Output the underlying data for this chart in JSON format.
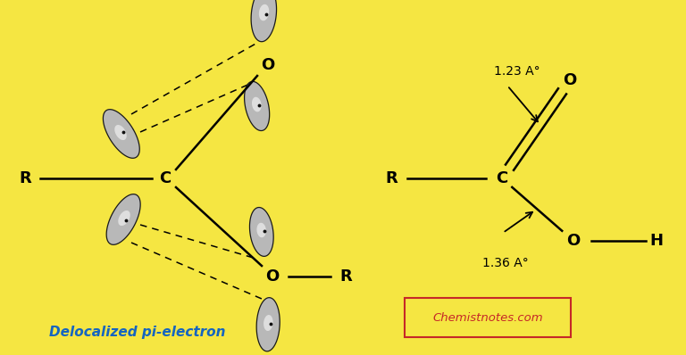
{
  "bg_color": "#F5E642",
  "left_label": "Delocalized pi-electron",
  "left_label_color": "#1565C0",
  "chemistnotes_text": "Chemistnotes.com",
  "chemistnotes_color": "#C62828",
  "chemistnotes_box_color": "#C62828",
  "annotation_123": "1.23 A°",
  "annotation_136": "1.36 A°"
}
